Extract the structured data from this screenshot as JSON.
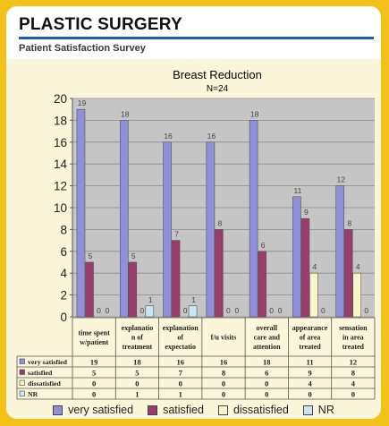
{
  "header": {
    "title": "PLASTIC SURGERY",
    "subtitle": "Patient Satisfaction Survey"
  },
  "colors": {
    "background": "#f2c21b",
    "rule": "#1f5ea8",
    "very_satisfied": "#8f90d8",
    "satisfied": "#9b3d6a",
    "dissatisfied": "#f8f6c8",
    "nr": "#c7e7f5",
    "plot_bg": "#c5c5c5"
  },
  "chart_data": {
    "type": "bar",
    "title": "Breast Reduction",
    "subtitle": "N=24",
    "categories": [
      [
        "time spent",
        "w/patient"
      ],
      [
        "explanatio",
        "n of",
        "treatment"
      ],
      [
        "explanation",
        "of",
        "expectatio"
      ],
      [
        "f/u visits"
      ],
      [
        "overall",
        "care and",
        "attention"
      ],
      [
        "appearance",
        "of area",
        "treated"
      ],
      [
        "sensation",
        "in area",
        "treated"
      ]
    ],
    "series": [
      {
        "name": "very satisfied",
        "values": [
          19,
          18,
          16,
          16,
          18,
          11,
          12
        ]
      },
      {
        "name": "satisfied",
        "values": [
          5,
          5,
          7,
          8,
          6,
          9,
          8
        ]
      },
      {
        "name": "dissatisfied",
        "values": [
          0,
          0,
          0,
          0,
          0,
          4,
          4
        ]
      },
      {
        "name": "NR",
        "values": [
          0,
          1,
          1,
          0,
          0,
          0,
          0
        ]
      }
    ],
    "ylim": [
      0,
      20
    ],
    "yticks": [
      0,
      2,
      4,
      6,
      8,
      10,
      12,
      14,
      16,
      18,
      20
    ],
    "grid": true,
    "legend_position": "bottom",
    "data_table": true
  }
}
